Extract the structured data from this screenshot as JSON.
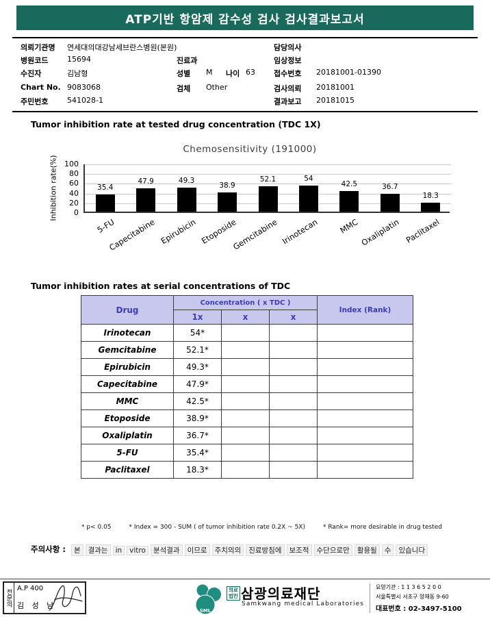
{
  "colors": {
    "banner_bg": "#19695c",
    "banner_text": "#ffffff",
    "table_header_bg": "#c8c8ee",
    "table_header_text": "#3b3bb2",
    "bar_color": "#000000",
    "logo_teal": "#1f8d7f"
  },
  "header": {
    "title": "ATP기반 항암제 감수성 검사 검사결과보고서"
  },
  "patient": {
    "org": {
      "label": "의뢰기관명",
      "value": "연세대의대강남세브란스병원(본원)"
    },
    "hospital_code": {
      "label": "병원코드",
      "value": "15694"
    },
    "examinee": {
      "label": "수진자",
      "value": "김남형"
    },
    "chart_no": {
      "label": "Chart No.",
      "value": "9083068"
    },
    "resident_no": {
      "label": "주민번호",
      "value": "541028-1"
    },
    "department": {
      "label": "진료과",
      "value": ""
    },
    "sex": {
      "label": "성별",
      "value": "M"
    },
    "age": {
      "label": "나이",
      "value": "63"
    },
    "specimen": {
      "label": "검체",
      "value": "Other"
    },
    "doctor": {
      "label": "담당의사",
      "value": ""
    },
    "clinical_info": {
      "label": "임상정보",
      "value": ""
    },
    "accession_no": {
      "label": "접수번호",
      "value": "20181001-01390"
    },
    "request_date": {
      "label": "검사의뢰",
      "value": "20181001"
    },
    "report_date": {
      "label": "결과보고",
      "value": "20181015"
    }
  },
  "sections": {
    "chart_heading": "Tumor inhibition rate at tested drug concentration (TDC 1X)",
    "table_heading": "Tumor inhibition rates at serial concentrations of TDC"
  },
  "chart_data": {
    "type": "bar",
    "title": "Chemosensitivity (191000)",
    "ylabel": "Inhibition rate(%)",
    "categories": [
      "5-FU",
      "Capecitabine",
      "Epirubicin",
      "Etoposide",
      "Gemcitabine",
      "Irinotecan",
      "MMC",
      "Oxaliplatin",
      "Paclitaxel"
    ],
    "values": [
      35.4,
      47.9,
      49.3,
      38.9,
      52.1,
      54,
      42.5,
      36.7,
      18.3
    ],
    "ylim": [
      0,
      100
    ],
    "yticks": [
      100,
      80,
      60,
      40,
      20,
      0
    ],
    "grid": true,
    "legend": false,
    "bar_color": "#000000"
  },
  "table": {
    "col_drug": "Drug",
    "col_concentration": "Concentration ( x TDC )",
    "col_index": "Index (Rank)",
    "sub_cols": [
      "1x",
      "x",
      "x"
    ],
    "rows": [
      {
        "drug": "Irinotecan",
        "c1x": "54*",
        "cx2": "",
        "cx3": "",
        "index": ""
      },
      {
        "drug": "Gemcitabine",
        "c1x": "52.1*",
        "cx2": "",
        "cx3": "",
        "index": ""
      },
      {
        "drug": "Epirubicin",
        "c1x": "49.3*",
        "cx2": "",
        "cx3": "",
        "index": ""
      },
      {
        "drug": "Capecitabine",
        "c1x": "47.9*",
        "cx2": "",
        "cx3": "",
        "index": ""
      },
      {
        "drug": "MMC",
        "c1x": "42.5*",
        "cx2": "",
        "cx3": "",
        "index": ""
      },
      {
        "drug": "Etoposide",
        "c1x": "38.9*",
        "cx2": "",
        "cx3": "",
        "index": ""
      },
      {
        "drug": "Oxaliplatin",
        "c1x": "36.7*",
        "cx2": "",
        "cx3": "",
        "index": ""
      },
      {
        "drug": "5-FU",
        "c1x": "35.4*",
        "cx2": "",
        "cx3": "",
        "index": ""
      },
      {
        "drug": "Paclitaxel",
        "c1x": "18.3*",
        "cx2": "",
        "cx3": "",
        "index": ""
      }
    ]
  },
  "footnotes": [
    "* p< 0.05",
    "* Index = 300 - SUM ( of tumor inhibition rate 0.2X ~ 5X)",
    "* Rank= more desirable in drug tested"
  ],
  "caution": {
    "label": "주의사항 :",
    "words": [
      "본",
      "결과는",
      "in",
      "vitro",
      "분석결과",
      "이므로",
      "주치의의",
      "진료방침에",
      "보조적",
      "수단으로만",
      "활용될",
      "수",
      "있습니다"
    ]
  },
  "footer": {
    "cert_label": "전문의",
    "cert_code": "A.P 400",
    "cert_name": "김 성 남",
    "logo_text": "SML",
    "corp_badge_line1": "의료",
    "corp_badge_line2": "법인",
    "org_name": "삼광의료재단",
    "org_name_en": "Samkwang medical Laboratories",
    "info_line1": "요양기관 : 1 1 3 6 5 2 0 0",
    "info_line2": "서울특별시 서초구 양재동 9-60",
    "info_line3": "대표번호 : 02-3497-5100"
  }
}
